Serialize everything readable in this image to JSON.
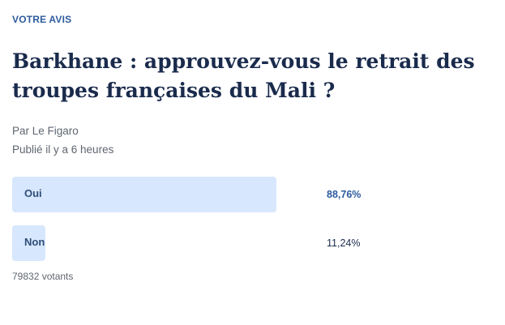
{
  "poll": {
    "kicker": "VOTRE AVIS",
    "title": "Barkhane : approuvez-vous le retrait des troupes françaises du Mali ?",
    "author": "Par Le Figaro",
    "published": "Publié il y a 6 heures",
    "options": [
      {
        "label": "Oui",
        "percent": "88,76%",
        "share": 0.8876
      },
      {
        "label": "Non",
        "percent": "11,24%",
        "share": 0.1124
      }
    ],
    "voters": "79832 votants"
  },
  "colors": {
    "accent": "#2d5b9e",
    "title": "#1a2b4c",
    "bar": "#d7e7fd",
    "muted": "#5f6670"
  }
}
